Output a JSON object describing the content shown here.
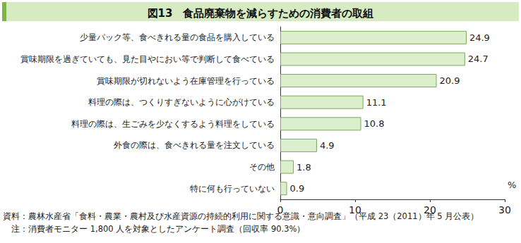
{
  "chart_data": {
    "type": "bar",
    "orientation": "horizontal",
    "title": "図13　食品廃棄物を減らすための消費者の取組",
    "categories": [
      "少量パック等、食べきれる量の食品を購入している",
      "賞味期限を過ぎていても、見た目やにおい等で判断して食べている",
      "賞味期限が切れないよう在庫管理を行っている",
      "料理の際は、つくりすぎないように心がけている",
      "料理の際は、生ごみを少なくするよう料理をしている",
      "外食の際は、食べきれる量を注文している",
      "その他",
      "特に何も行っていない"
    ],
    "values": [
      24.9,
      24.7,
      20.9,
      11.1,
      10.8,
      4.9,
      1.8,
      0.9
    ],
    "color": "#dcefcc",
    "xlabel": "%",
    "xlim": [
      0,
      30
    ],
    "xticks": [
      0,
      10,
      20,
      30
    ],
    "grid": false,
    "data_labels": true,
    "annotations": [
      "資料：農林水産省「食料・農業・農村及び水産資源の持続的利用に関する意識・意向調査」（平成 23（2011）年 5 月公表）",
      "注：消費者モニター 1,800 人を対象としたアンケート調査（回収率 90.3%）"
    ]
  }
}
